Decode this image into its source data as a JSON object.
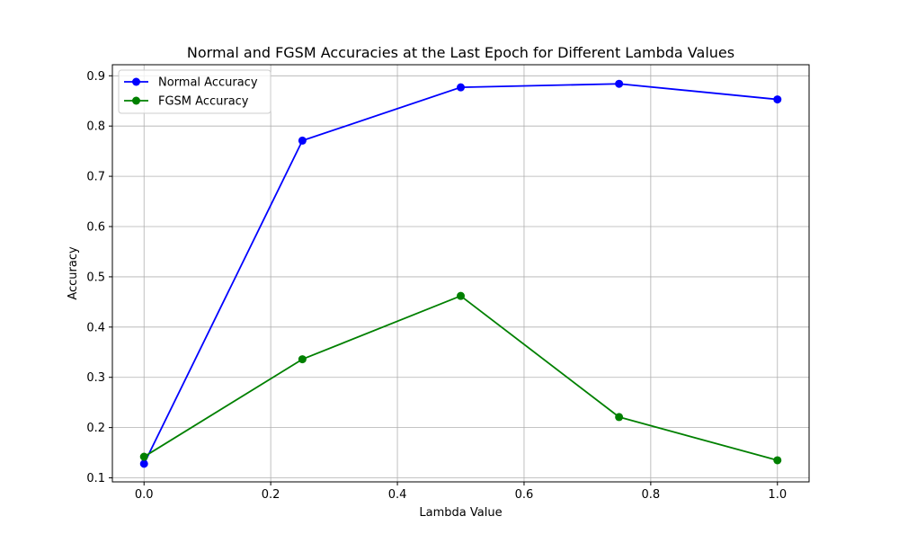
{
  "chart_data": {
    "type": "line",
    "title": "Normal and FGSM Accuracies at the Last Epoch for Different Lambda Values",
    "xlabel": "Lambda Value",
    "ylabel": "Accuracy",
    "x": [
      0.0,
      0.25,
      0.5,
      0.75,
      1.0
    ],
    "xlim": [
      -0.05,
      1.05
    ],
    "ylim": [
      0.092,
      0.922
    ],
    "xticks": [
      0.0,
      0.2,
      0.4,
      0.6,
      0.8,
      1.0
    ],
    "xtick_labels": [
      "0.0",
      "0.2",
      "0.4",
      "0.6",
      "0.8",
      "1.0"
    ],
    "yticks": [
      0.1,
      0.2,
      0.3,
      0.4,
      0.5,
      0.6,
      0.7,
      0.8,
      0.9
    ],
    "ytick_labels": [
      "0.1",
      "0.2",
      "0.3",
      "0.4",
      "0.5",
      "0.6",
      "0.7",
      "0.8",
      "0.9"
    ],
    "grid": true,
    "legend_position": "top-left",
    "series": [
      {
        "name": "Normal Accuracy",
        "color": "#0000ff",
        "marker": "circle",
        "values": [
          0.128,
          0.771,
          0.877,
          0.884,
          0.853
        ]
      },
      {
        "name": "FGSM Accuracy",
        "color": "#008000",
        "marker": "circle",
        "values": [
          0.142,
          0.336,
          0.462,
          0.221,
          0.135
        ]
      }
    ]
  }
}
